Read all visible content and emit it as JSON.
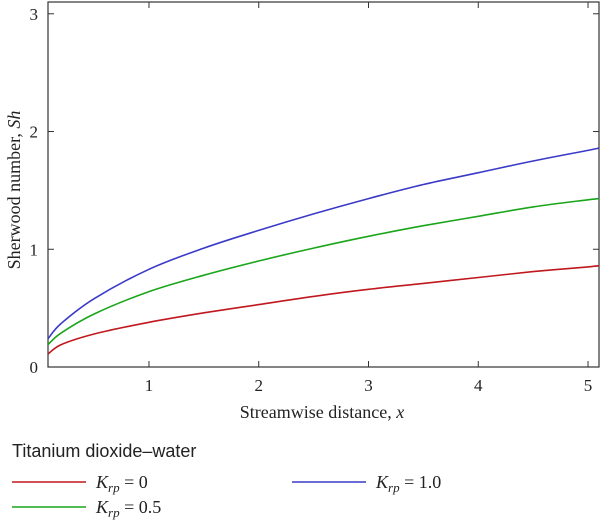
{
  "chart_data": {
    "type": "line",
    "xlabel_text": "Streamwise distance, ",
    "xlabel_var": "x",
    "ylabel_text": "Sherwood number, ",
    "ylabel_var": "Sh",
    "xlim": [
      0.08,
      5.1
    ],
    "ylim": [
      0,
      3.1
    ],
    "xticks": [
      1,
      2,
      3,
      4,
      5
    ],
    "yticks": [
      0,
      1,
      2,
      3
    ],
    "legend_title": "Titanium dioxide–water",
    "legend_placement": "bottom, below plot",
    "series": [
      {
        "sym": "K",
        "sub": "rp",
        "val": " = 0",
        "color": "#c0181e",
        "x": [
          0.08,
          0.2,
          0.5,
          1,
          1.5,
          2,
          2.5,
          3,
          3.5,
          4,
          4.5,
          5,
          5.1
        ],
        "y": [
          0.11,
          0.19,
          0.28,
          0.38,
          0.46,
          0.53,
          0.6,
          0.66,
          0.71,
          0.76,
          0.81,
          0.85,
          0.86
        ]
      },
      {
        "sym": "K",
        "sub": "rp",
        "val": " = 0.5",
        "color": "#1aa51a",
        "x": [
          0.08,
          0.2,
          0.5,
          1,
          1.5,
          2,
          2.5,
          3,
          3.5,
          4,
          4.5,
          5,
          5.1
        ],
        "y": [
          0.19,
          0.29,
          0.45,
          0.64,
          0.78,
          0.9,
          1.01,
          1.11,
          1.2,
          1.28,
          1.36,
          1.42,
          1.43
        ]
      },
      {
        "sym": "K",
        "sub": "rp",
        "val": " = 1.0",
        "color": "#3a3ac8",
        "x": [
          0.08,
          0.2,
          0.5,
          1,
          1.5,
          2,
          2.5,
          3,
          3.5,
          4,
          4.5,
          5,
          5.1
        ],
        "y": [
          0.24,
          0.37,
          0.58,
          0.83,
          1.01,
          1.16,
          1.3,
          1.43,
          1.55,
          1.65,
          1.75,
          1.84,
          1.86
        ]
      }
    ]
  }
}
